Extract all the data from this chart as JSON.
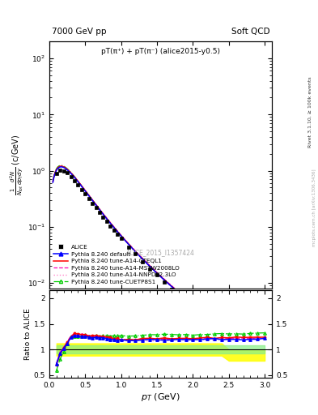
{
  "title_left": "7000 GeV pp",
  "title_right": "Soft QCD",
  "plot_title": "pT(π⁺) + pT(π⁻) (alice2015-y0.5)",
  "ylabel_main": "$\\frac{1}{N_{tot}}\\frac{d^2N}{dp_{T}dy}$ (c/GeV)",
  "ylabel_ratio": "Ratio to ALICE",
  "right_label": "Rivet 3.1.10, ≥ 100k events",
  "watermark": "mcplots.cern.ch [arXiv:1306.3436]",
  "inspire_id": "ALICE_2015_I1357424",
  "xlim": [
    0,
    3.1
  ],
  "ylim_main": [
    0.008,
    200
  ],
  "ylim_ratio": [
    0.45,
    2.15
  ],
  "colors": {
    "alice": "#000000",
    "default": "#0000ff",
    "cteql1": "#ff0000",
    "mstw": "#ff00bb",
    "nnpdf": "#ff88cc",
    "cuetp": "#00cc00"
  }
}
